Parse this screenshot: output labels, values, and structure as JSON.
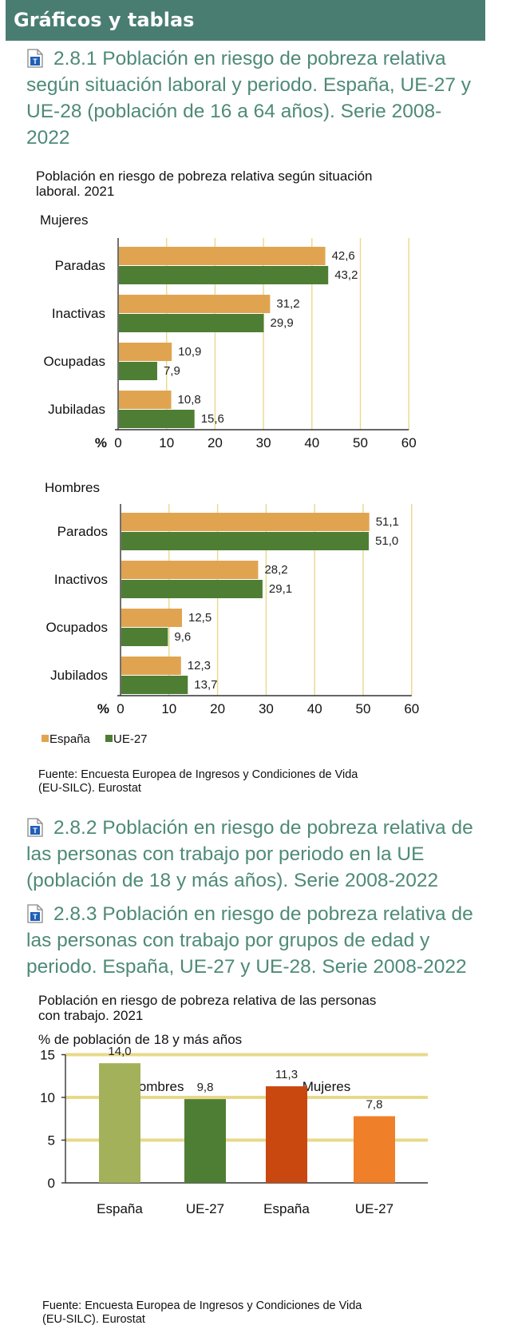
{
  "header": {
    "title": "Gráficos y tablas"
  },
  "links": [
    {
      "icon": "table-document-icon",
      "text": "2.8.1 Población en riesgo de pobreza relativa según situación laboral y periodo. España, UE-27 y UE-28 (población de 16 a 64 años). Serie 2008-2022"
    },
    {
      "icon": "table-document-icon",
      "text": "2.8.2 Población en riesgo de pobreza relativa de las personas con trabajo por periodo en la UE (población de 18 y más años). Serie 2008-2022"
    },
    {
      "icon": "table-document-icon",
      "text": "2.8.3 Población en riesgo de pobreza relativa de las personas con trabajo por grupos de edad y periodo. España, UE-27 y UE-28. Serie 2008-2022"
    }
  ],
  "chart1": {
    "title_line1": "Población en riesgo de pobreza relativa según situación",
    "title_line2": "laboral. 2021",
    "source_line1": "Fuente: Encuesta Europea de Ingresos y Condiciones de Vida",
    "source_line2": "(EU-SILC). Eurostat"
  },
  "chart2": {
    "title_line1": "Población en riesgo de pobreza relativa de las personas",
    "title_line2": "con trabajo. 2021",
    "subtitle": "% de población de 18 y más años",
    "source_line1": "Fuente: Encuesta Europea de Ingresos y Condiciones de Vida",
    "source_line2": "(EU-SILC). Eurostat"
  },
  "colors": {
    "espana": "#e0a450",
    "ue27": "#4e7e34",
    "grid": "#e8d98a",
    "header": "#4a7d72",
    "link": "#4e8a78"
  },
  "chart_data": [
    {
      "type": "bar",
      "orientation": "horizontal",
      "panel": "Mujeres",
      "categories": [
        "Paradas",
        "Inactivas",
        "Ocupadas",
        "Jubiladas"
      ],
      "series": [
        {
          "name": "España",
          "values": [
            42.6,
            31.2,
            10.9,
            10.8
          ],
          "labels": [
            "42,6",
            "31,2",
            "10,9",
            "10,8"
          ]
        },
        {
          "name": "UE-27",
          "values": [
            43.2,
            29.9,
            7.9,
            15.6
          ],
          "labels": [
            "43,2",
            "29,9",
            "7,9",
            "15,6"
          ]
        }
      ],
      "xlabel": "%",
      "xlim": [
        0,
        60
      ],
      "ticks": [
        0,
        10,
        20,
        30,
        40,
        50,
        60
      ],
      "grid": true
    },
    {
      "type": "bar",
      "orientation": "horizontal",
      "panel": "Hombres",
      "categories": [
        "Parados",
        "Inactivos",
        "Ocupados",
        "Jubilados"
      ],
      "series": [
        {
          "name": "España",
          "values": [
            51.1,
            28.2,
            12.5,
            12.3
          ],
          "labels": [
            "51,1",
            "28,2",
            "12,5",
            "12,3"
          ]
        },
        {
          "name": "UE-27",
          "values": [
            51.0,
            29.1,
            9.6,
            13.7
          ],
          "labels": [
            "51,0",
            "29,1",
            "9,6",
            "13,7"
          ]
        }
      ],
      "xlabel": "%",
      "xlim": [
        0,
        60
      ],
      "ticks": [
        0,
        10,
        20,
        30,
        40,
        50,
        60
      ],
      "grid": true,
      "legend": [
        "España",
        "UE-27"
      ],
      "legend_position": "bottom-left"
    },
    {
      "type": "bar",
      "groups": [
        "Hombres",
        "Mujeres"
      ],
      "categories": [
        "España",
        "UE-27",
        "España",
        "UE-27"
      ],
      "values": [
        14.0,
        9.8,
        11.3,
        7.8
      ],
      "labels": [
        "14,0",
        "9,8",
        "11,3",
        "7,8"
      ],
      "bar_colors": [
        "#a3b15a",
        "#4e7e34",
        "#c9480f",
        "#f07f2a"
      ],
      "ylim": [
        0,
        15
      ],
      "ticks": [
        0,
        5,
        10,
        15
      ],
      "grid": true
    }
  ]
}
